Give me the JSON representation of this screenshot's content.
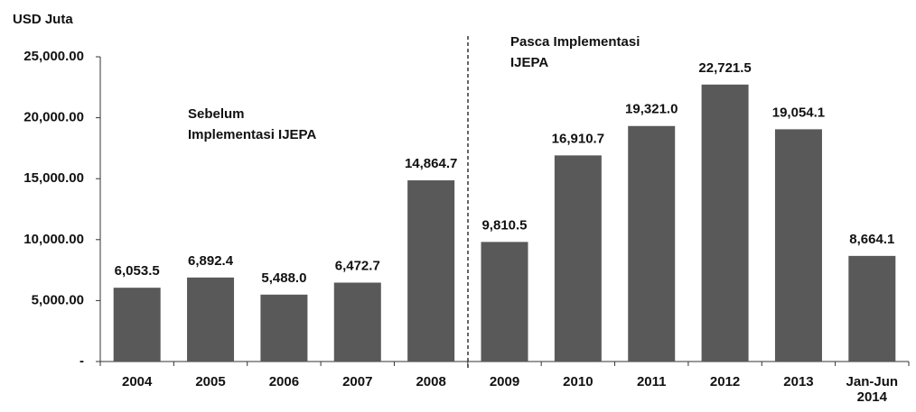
{
  "chart_data": {
    "type": "bar",
    "y_axis_label": "USD Juta",
    "categories": [
      "2004",
      "2005",
      "2006",
      "2007",
      "2008",
      "2009",
      "2010",
      "2011",
      "2012",
      "2013",
      "Jan-Jun 2014"
    ],
    "values": [
      6053.5,
      6892.4,
      5488.0,
      6472.7,
      14864.7,
      9810.5,
      16910.7,
      19321.0,
      22721.5,
      19054.1,
      8664.1
    ],
    "value_labels": [
      "6,053.5",
      "6,892.4",
      "5,488.0",
      "6,472.7",
      "14,864.7",
      "9,810.5",
      "16,910.7",
      "19,321.0",
      "22,721.5",
      "19,054.1",
      "8,664.1"
    ],
    "color": "#595959",
    "ylim": [
      0,
      25000
    ],
    "yticks": [
      {
        "value": 0,
        "label": "-"
      },
      {
        "value": 5000,
        "label": "5,000.00"
      },
      {
        "value": 10000,
        "label": "10,000.00"
      },
      {
        "value": 15000,
        "label": "15,000.00"
      },
      {
        "value": 20000,
        "label": "20,000.00"
      },
      {
        "value": 25000,
        "label": "25,000.00"
      }
    ],
    "annotations": [
      {
        "lines": [
          "Sebelum",
          "Implementasi IJEPA"
        ]
      },
      {
        "lines": [
          "Pasca Implementasi",
          "IJEPA"
        ]
      }
    ]
  }
}
